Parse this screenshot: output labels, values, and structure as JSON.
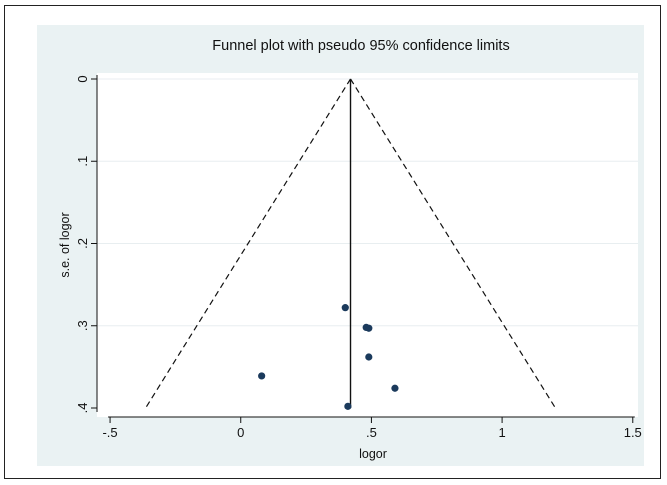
{
  "chart_data": {
    "type": "scatter",
    "title": "Funnel plot with pseudo 95% confidence limits",
    "xlabel": "logor",
    "ylabel": "s.e. of logor",
    "xlim": [
      -0.55,
      1.52
    ],
    "ylim": [
      0,
      0.4
    ],
    "y_reversed": true,
    "x_ticks": [
      -0.5,
      0,
      0.5,
      1,
      1.5
    ],
    "x_tick_labels": [
      "-.5",
      "0",
      ".5",
      "1",
      "1.5"
    ],
    "y_ticks": [
      0,
      0.1,
      0.2,
      0.3,
      0.4
    ],
    "y_tick_labels": [
      "0",
      ".1",
      ".2",
      ".3",
      ".4"
    ],
    "grid": true,
    "pooled_estimate": 0.42,
    "confidence_limit_multiplier": 1.96,
    "points": [
      {
        "x": 0.4,
        "y": 0.278
      },
      {
        "x": 0.48,
        "y": 0.302
      },
      {
        "x": 0.49,
        "y": 0.303
      },
      {
        "x": 0.49,
        "y": 0.338
      },
      {
        "x": 0.08,
        "y": 0.361
      },
      {
        "x": 0.59,
        "y": 0.376
      },
      {
        "x": 0.41,
        "y": 0.398
      }
    ],
    "colors": {
      "panel_background": "#eaf2f3",
      "plot_background": "#ffffff",
      "grid": "#e8eef0",
      "point": "#1b3a5c",
      "line": "#111111"
    }
  }
}
